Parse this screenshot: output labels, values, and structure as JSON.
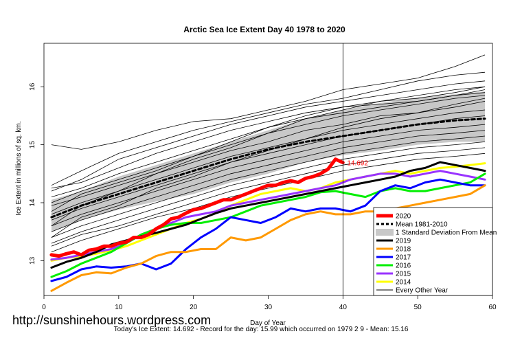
{
  "chart_data": {
    "type": "line",
    "title": "Arctic Sea Ice Extent Day 40 1978 to 2020",
    "xlabel": "Day of Year",
    "ylabel": "Ice Extent in millions of sq. km.",
    "xlim": [
      0,
      60
    ],
    "ylim": [
      12.4,
      16.75
    ],
    "x_ticks": [
      0,
      10,
      20,
      30,
      40,
      50,
      60
    ],
    "y_ticks": [
      13,
      14,
      15,
      16
    ],
    "grid": false,
    "legend_position": "bottom-right",
    "vertical_marker_day": 40,
    "annotation": {
      "text": "14.692",
      "x": 40,
      "y": 14.692,
      "color": "#ff0000"
    },
    "std_band": {
      "name": "1 Standard Deviation From Mean",
      "color": "#c8c8c8",
      "x": [
        1,
        5,
        10,
        15,
        20,
        25,
        30,
        35,
        40,
        45,
        50,
        55,
        59
      ],
      "lower": [
        13.5,
        13.7,
        13.88,
        14.02,
        14.15,
        14.35,
        14.5,
        14.7,
        14.82,
        14.9,
        15.0,
        15.05,
        15.05
      ],
      "upper": [
        14.05,
        14.2,
        14.45,
        14.65,
        14.85,
        15.05,
        15.25,
        15.45,
        15.6,
        15.72,
        15.82,
        15.87,
        15.92
      ]
    },
    "series": [
      {
        "name": "2020",
        "color": "#ff0000",
        "width": 5,
        "x": [
          1,
          2,
          3,
          4,
          5,
          6,
          7,
          8,
          9,
          10,
          11,
          12,
          13,
          14,
          15,
          16,
          17,
          18,
          19,
          20,
          21,
          22,
          23,
          24,
          25,
          26,
          27,
          28,
          29,
          30,
          31,
          32,
          33,
          34,
          35,
          36,
          37,
          38,
          39,
          40
        ],
        "y": [
          13.1,
          13.08,
          13.12,
          13.15,
          13.1,
          13.18,
          13.2,
          13.25,
          13.25,
          13.3,
          13.32,
          13.4,
          13.4,
          13.45,
          13.55,
          13.62,
          13.72,
          13.75,
          13.82,
          13.88,
          13.9,
          13.95,
          14.0,
          14.05,
          14.05,
          14.1,
          14.15,
          14.2,
          14.25,
          14.3,
          14.3,
          14.35,
          14.38,
          14.35,
          14.42,
          14.45,
          14.5,
          14.58,
          14.75,
          14.692
        ]
      },
      {
        "name": "Mean 1981-2010",
        "color": "#000000",
        "width": 3,
        "dash": true,
        "x": [
          1,
          5,
          10,
          15,
          20,
          25,
          30,
          35,
          40,
          45,
          50,
          55,
          59
        ],
        "y": [
          13.75,
          13.95,
          14.15,
          14.35,
          14.55,
          14.75,
          14.92,
          15.05,
          15.15,
          15.25,
          15.35,
          15.42,
          15.45
        ]
      },
      {
        "name": "2019",
        "color": "#000000",
        "width": 3,
        "x": [
          1,
          3,
          5,
          7,
          9,
          11,
          13,
          15,
          17,
          19,
          21,
          23,
          25,
          27,
          29,
          31,
          33,
          35,
          37,
          39,
          41,
          43,
          45,
          47,
          49,
          51,
          53,
          55,
          57,
          59
        ],
        "y": [
          12.88,
          12.98,
          13.05,
          13.15,
          13.28,
          13.35,
          13.42,
          13.48,
          13.55,
          13.62,
          13.72,
          13.82,
          13.9,
          13.95,
          14.0,
          14.05,
          14.1,
          14.15,
          14.2,
          14.25,
          14.3,
          14.35,
          14.4,
          14.45,
          14.55,
          14.6,
          14.7,
          14.65,
          14.6,
          14.55
        ]
      },
      {
        "name": "2018",
        "color": "#ff9900",
        "width": 3,
        "x": [
          1,
          3,
          5,
          7,
          9,
          11,
          13,
          15,
          17,
          19,
          21,
          23,
          25,
          27,
          29,
          31,
          33,
          35,
          37,
          39,
          41,
          43,
          45,
          47,
          49,
          51,
          53,
          55,
          57,
          59
        ],
        "y": [
          12.48,
          12.62,
          12.75,
          12.8,
          12.78,
          12.88,
          12.95,
          13.08,
          13.15,
          13.15,
          13.2,
          13.2,
          13.4,
          13.35,
          13.4,
          13.55,
          13.7,
          13.8,
          13.85,
          13.8,
          13.8,
          13.85,
          13.85,
          13.9,
          13.95,
          14.0,
          14.05,
          14.1,
          14.15,
          14.3
        ]
      },
      {
        "name": "2017",
        "color": "#0000ff",
        "width": 3,
        "x": [
          1,
          3,
          5,
          7,
          9,
          11,
          13,
          15,
          17,
          19,
          21,
          23,
          25,
          27,
          29,
          31,
          33,
          35,
          37,
          39,
          41,
          43,
          45,
          47,
          49,
          51,
          53,
          55,
          57,
          59
        ],
        "y": [
          12.65,
          12.72,
          12.85,
          12.9,
          12.88,
          12.9,
          12.95,
          12.85,
          12.95,
          13.2,
          13.4,
          13.55,
          13.75,
          13.7,
          13.65,
          13.75,
          13.9,
          13.85,
          13.9,
          13.9,
          13.85,
          13.95,
          14.2,
          14.3,
          14.25,
          14.35,
          14.4,
          14.35,
          14.3,
          14.3
        ]
      },
      {
        "name": "2016",
        "color": "#00ee00",
        "width": 3,
        "x": [
          1,
          3,
          5,
          7,
          9,
          11,
          13,
          15,
          17,
          19,
          21,
          23,
          25,
          27,
          29,
          31,
          33,
          35,
          37,
          39,
          41,
          43,
          45,
          47,
          49,
          51,
          53,
          55,
          57,
          59
        ],
        "y": [
          12.72,
          12.82,
          12.95,
          13.05,
          13.15,
          13.3,
          13.45,
          13.55,
          13.62,
          13.65,
          13.65,
          13.7,
          13.75,
          13.85,
          13.95,
          14.0,
          14.05,
          14.1,
          14.18,
          14.2,
          14.15,
          14.1,
          14.2,
          14.25,
          14.2,
          14.2,
          14.25,
          14.3,
          14.35,
          14.5
        ]
      },
      {
        "name": "2015",
        "color": "#9933ff",
        "width": 3,
        "x": [
          1,
          3,
          5,
          7,
          9,
          11,
          13,
          15,
          17,
          19,
          21,
          23,
          25,
          27,
          29,
          31,
          33,
          35,
          37,
          39,
          41,
          43,
          45,
          47,
          49,
          51,
          53,
          55,
          57,
          59
        ],
        "y": [
          13.02,
          13.05,
          13.1,
          13.15,
          13.2,
          13.3,
          13.45,
          13.55,
          13.65,
          13.75,
          13.8,
          13.85,
          13.95,
          14.0,
          14.05,
          14.1,
          14.15,
          14.2,
          14.25,
          14.3,
          14.4,
          14.45,
          14.5,
          14.5,
          14.45,
          14.5,
          14.55,
          14.5,
          14.45,
          14.4
        ]
      },
      {
        "name": "2014",
        "color": "#ffff00",
        "width": 3,
        "x": [
          1,
          3,
          5,
          7,
          9,
          11,
          13,
          15,
          17,
          19,
          21,
          23,
          25,
          27,
          29,
          31,
          33,
          35,
          37,
          39,
          41,
          43,
          45,
          47,
          49,
          51,
          53,
          55,
          57,
          59
        ],
        "y": [
          13.0,
          13.05,
          13.08,
          13.12,
          13.18,
          13.25,
          13.35,
          13.45,
          13.55,
          13.65,
          13.72,
          13.82,
          13.95,
          14.05,
          14.15,
          14.2,
          14.25,
          14.2,
          14.25,
          14.35,
          14.4,
          14.45,
          14.5,
          14.55,
          14.5,
          14.55,
          14.6,
          14.62,
          14.65,
          14.68
        ]
      }
    ],
    "other_years": {
      "name": "Every Other Year",
      "color": "#000000",
      "x": [
        1,
        5,
        10,
        15,
        20,
        25,
        30,
        35,
        40,
        45,
        50,
        55,
        59
      ],
      "lines": [
        [
          15.0,
          14.92,
          15.05,
          15.25,
          15.4,
          15.45,
          15.6,
          15.75,
          15.95,
          16.05,
          16.15,
          16.35,
          16.55
        ],
        [
          14.3,
          14.55,
          14.85,
          15.05,
          15.25,
          15.4,
          15.55,
          15.7,
          15.8,
          15.95,
          16.1,
          16.2,
          16.25
        ],
        [
          14.2,
          14.4,
          14.75,
          14.95,
          15.15,
          15.35,
          15.5,
          15.65,
          15.75,
          15.85,
          15.95,
          16.05,
          16.1
        ],
        [
          14.25,
          14.35,
          14.6,
          14.85,
          15.05,
          15.25,
          15.4,
          15.55,
          15.65,
          15.75,
          15.85,
          15.95,
          16.0
        ],
        [
          14.1,
          14.25,
          14.5,
          14.7,
          14.9,
          15.1,
          15.3,
          15.45,
          15.55,
          15.65,
          15.75,
          15.85,
          15.9
        ],
        [
          14.0,
          14.2,
          14.4,
          14.6,
          14.8,
          15.0,
          15.2,
          15.35,
          15.5,
          15.6,
          15.7,
          15.8,
          15.85
        ],
        [
          13.95,
          14.1,
          14.3,
          14.5,
          14.7,
          14.9,
          15.05,
          15.25,
          15.35,
          15.5,
          15.55,
          15.65,
          15.75
        ],
        [
          13.8,
          14.0,
          14.2,
          14.4,
          14.6,
          14.8,
          14.95,
          15.1,
          15.25,
          15.35,
          15.45,
          15.55,
          15.6
        ],
        [
          13.7,
          13.9,
          14.1,
          14.3,
          14.5,
          14.7,
          14.85,
          15.0,
          15.15,
          15.25,
          15.35,
          15.45,
          15.5
        ],
        [
          13.6,
          13.8,
          14.0,
          14.2,
          14.4,
          14.6,
          14.75,
          14.9,
          15.05,
          15.15,
          15.25,
          15.3,
          15.35
        ],
        [
          13.5,
          13.7,
          13.9,
          14.1,
          14.3,
          14.5,
          14.65,
          14.8,
          14.95,
          15.05,
          15.15,
          15.2,
          15.25
        ],
        [
          13.4,
          13.6,
          13.8,
          14.0,
          14.2,
          14.4,
          14.55,
          14.7,
          14.85,
          14.95,
          15.05,
          15.1,
          15.15
        ],
        [
          13.3,
          13.5,
          13.7,
          13.9,
          14.1,
          14.3,
          14.45,
          14.6,
          14.75,
          14.85,
          14.95,
          15.0,
          15.05
        ],
        [
          13.25,
          13.45,
          13.6,
          13.8,
          14.0,
          14.2,
          14.35,
          14.5,
          14.65,
          14.75,
          14.85,
          14.9,
          14.95
        ],
        [
          13.15,
          13.35,
          13.55,
          13.75,
          13.9,
          14.1,
          14.25,
          14.4,
          14.55,
          14.65,
          14.75,
          14.8,
          14.85
        ],
        [
          13.6,
          13.95,
          14.2,
          14.5,
          14.75,
          14.95,
          15.2,
          15.45,
          15.6,
          15.75,
          15.8,
          15.9,
          16.0
        ],
        [
          13.85,
          14.15,
          14.35,
          14.55,
          14.8,
          15.05,
          15.3,
          15.5,
          15.65,
          15.7,
          15.75,
          15.85,
          15.95
        ],
        [
          13.4,
          13.75,
          13.95,
          14.25,
          14.45,
          14.7,
          14.9,
          15.1,
          15.3,
          15.45,
          15.55,
          15.7,
          15.8
        ]
      ]
    }
  },
  "legend": [
    {
      "label": "2020",
      "color": "#ff0000",
      "style": "line-thick"
    },
    {
      "label": "Mean 1981-2010",
      "color": "#000000",
      "style": "dashed"
    },
    {
      "label": "1 Standard Deviation From Mean",
      "color": "#c8c8c8",
      "style": "box"
    },
    {
      "label": "2019",
      "color": "#000000",
      "style": "line"
    },
    {
      "label": "2018",
      "color": "#ff9900",
      "style": "line"
    },
    {
      "label": "2017",
      "color": "#0000ff",
      "style": "line"
    },
    {
      "label": "2016",
      "color": "#00ee00",
      "style": "line"
    },
    {
      "label": "2015",
      "color": "#9933ff",
      "style": "line"
    },
    {
      "label": "2014",
      "color": "#ffff00",
      "style": "line"
    },
    {
      "label": "Every Other Year",
      "color": "#000000",
      "style": "line-thin"
    }
  ],
  "watermark": "http://sunshinehours.wordpress.com",
  "footer": "Today's Ice Extent: 14.692  - Record for the day: 15.99 which occurred on 1979 2 9  - Mean: 15.16"
}
